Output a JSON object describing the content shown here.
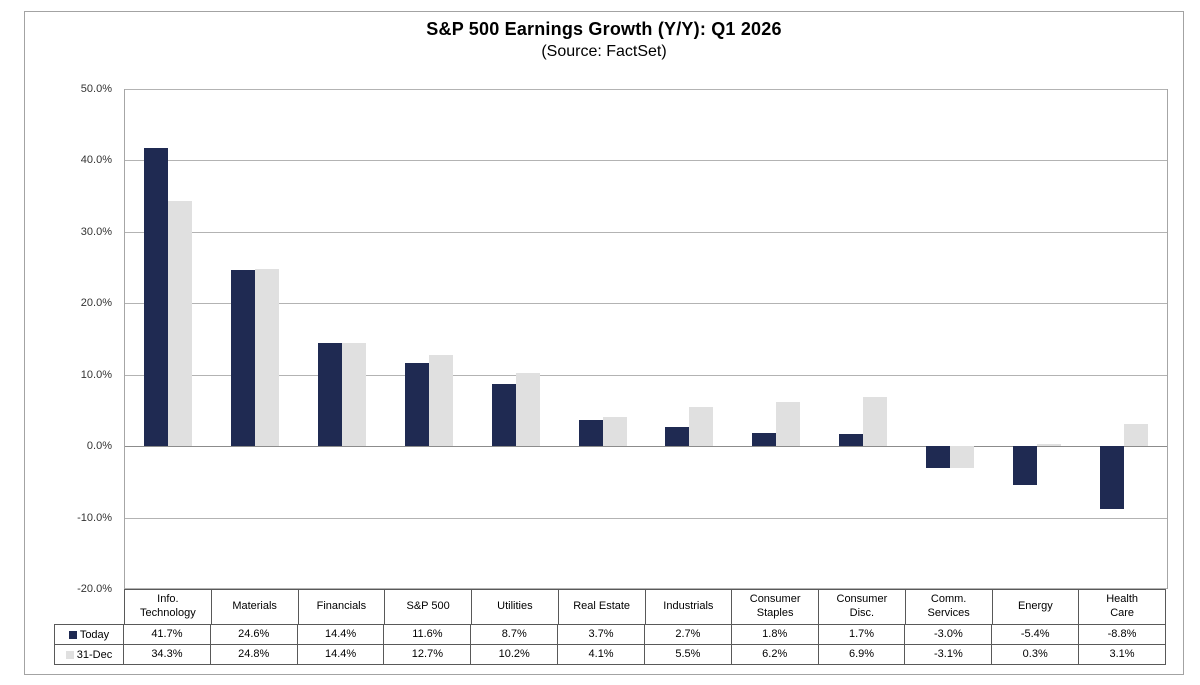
{
  "title": "S&P 500 Earnings Growth (Y/Y): Q1 2026",
  "subtitle": "(Source: FactSet)",
  "chart_data": {
    "type": "bar",
    "title": "S&P 500 Earnings Growth (Y/Y): Q1 2026",
    "subtitle": "(Source: FactSet)",
    "categories": [
      "Info. Technology",
      "Materials",
      "Financials",
      "S&P 500",
      "Utilities",
      "Real Estate",
      "Industrials",
      "Consumer Staples",
      "Consumer Disc.",
      "Comm. Services",
      "Energy",
      "Health Care"
    ],
    "category_labels": [
      "Info.\nTechnology",
      "Materials",
      "Financials",
      "S&P 500",
      "Utilities",
      "Real Estate",
      "Industrials",
      "Consumer\nStaples",
      "Consumer\nDisc.",
      "Comm.\nServices",
      "Energy",
      "Health\nCare"
    ],
    "series": [
      {
        "name": "Today",
        "color": "#1f2a52",
        "values": [
          41.7,
          24.6,
          14.4,
          11.6,
          8.7,
          3.7,
          2.7,
          1.8,
          1.7,
          -3.0,
          -5.4,
          -8.8
        ]
      },
      {
        "name": "31-Dec",
        "color": "#e0e0e0",
        "values": [
          34.3,
          24.8,
          14.4,
          12.7,
          10.2,
          4.1,
          5.5,
          6.2,
          6.9,
          -3.1,
          0.3,
          3.1
        ]
      }
    ],
    "ylabel": "",
    "xlabel": "",
    "ylim": [
      -20,
      50
    ],
    "y_tick_step": 10,
    "y_tick_labels": [
      "50.0%",
      "40.0%",
      "30.0%",
      "20.0%",
      "10.0%",
      "0.0%",
      "-10.0%",
      "-20.0%"
    ],
    "grid": true,
    "legend_position": "data-table-left",
    "value_format": "one-decimal-percent"
  }
}
